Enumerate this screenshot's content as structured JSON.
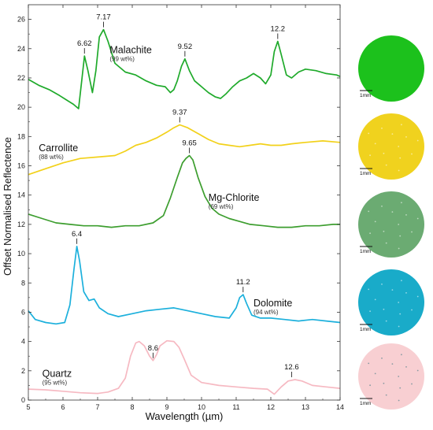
{
  "chart_data": {
    "type": "line",
    "xlabel": "Wavelength (µm)",
    "ylabel": "Offset Normalised Reflectence",
    "xlim": [
      5,
      14
    ],
    "ylim": [
      0,
      27
    ],
    "xticks": [
      "5",
      "6",
      "7",
      "8",
      "9",
      "10",
      "11",
      "12",
      "13",
      "14"
    ],
    "yticks": [
      "0",
      "2",
      "4",
      "6",
      "8",
      "10",
      "12",
      "14",
      "16",
      "18",
      "20",
      "22",
      "24",
      "26"
    ],
    "grid": false,
    "series": [
      {
        "name": "Malachite",
        "composition": "(99 wt%)",
        "color": "#1faa2b",
        "x": [
          5.0,
          5.3,
          5.6,
          5.9,
          6.1,
          6.3,
          6.45,
          6.55,
          6.62,
          6.72,
          6.85,
          6.95,
          7.05,
          7.17,
          7.3,
          7.5,
          7.8,
          8.1,
          8.4,
          8.7,
          8.95,
          9.1,
          9.2,
          9.3,
          9.42,
          9.52,
          9.65,
          9.8,
          10.0,
          10.2,
          10.4,
          10.55,
          10.7,
          10.9,
          11.1,
          11.3,
          11.5,
          11.7,
          11.85,
          12.0,
          12.1,
          12.2,
          12.3,
          12.45,
          12.6,
          12.8,
          13.0,
          13.3,
          13.6,
          13.9,
          14.0
        ],
        "y": [
          21.9,
          21.5,
          21.2,
          20.8,
          20.5,
          20.2,
          19.9,
          22.0,
          23.5,
          22.5,
          21.0,
          22.5,
          24.8,
          25.3,
          24.5,
          23.0,
          22.4,
          22.2,
          21.8,
          21.5,
          21.4,
          21.0,
          21.2,
          21.8,
          22.8,
          23.3,
          22.5,
          21.8,
          21.4,
          21.0,
          20.7,
          20.6,
          20.9,
          21.4,
          21.8,
          22.0,
          22.3,
          22.0,
          21.6,
          22.2,
          23.8,
          24.5,
          23.6,
          22.2,
          22.0,
          22.4,
          22.6,
          22.5,
          22.3,
          22.2,
          22.1
        ]
      },
      {
        "name": "Carrollite",
        "composition": "(88 wt%)",
        "color": "#f2d11a",
        "x": [
          5.0,
          5.5,
          6.0,
          6.5,
          7.0,
          7.5,
          7.8,
          8.1,
          8.4,
          8.7,
          9.0,
          9.2,
          9.37,
          9.6,
          9.9,
          10.2,
          10.5,
          10.8,
          11.1,
          11.4,
          11.7,
          12.0,
          12.3,
          12.6,
          13.0,
          13.5,
          14.0
        ],
        "y": [
          15.4,
          15.8,
          16.2,
          16.5,
          16.6,
          16.7,
          17.0,
          17.4,
          17.6,
          17.9,
          18.3,
          18.6,
          18.8,
          18.6,
          18.2,
          17.8,
          17.5,
          17.4,
          17.3,
          17.4,
          17.5,
          17.4,
          17.4,
          17.5,
          17.6,
          17.7,
          17.6
        ]
      },
      {
        "name": "Mg-Chlorite",
        "composition": "(69 wt%)",
        "color": "#3d9e2f",
        "x": [
          5.0,
          5.4,
          5.8,
          6.2,
          6.6,
          7.0,
          7.4,
          7.8,
          8.2,
          8.6,
          8.9,
          9.1,
          9.3,
          9.45,
          9.55,
          9.65,
          9.75,
          9.9,
          10.1,
          10.3,
          10.5,
          10.8,
          11.1,
          11.4,
          11.8,
          12.2,
          12.6,
          13.0,
          13.4,
          13.8,
          14.0
        ],
        "y": [
          12.7,
          12.4,
          12.1,
          12.0,
          11.9,
          11.9,
          11.8,
          11.9,
          11.9,
          12.1,
          12.6,
          13.8,
          15.2,
          16.2,
          16.5,
          16.7,
          16.4,
          15.2,
          13.9,
          13.1,
          12.7,
          12.4,
          12.2,
          12.0,
          11.9,
          11.8,
          11.8,
          11.9,
          11.9,
          12.0,
          12.0
        ]
      },
      {
        "name": "Dolomite",
        "composition": "(94 wt%)",
        "color": "#1cb0dc",
        "x": [
          5.0,
          5.2,
          5.5,
          5.8,
          6.05,
          6.2,
          6.32,
          6.4,
          6.48,
          6.6,
          6.75,
          6.9,
          7.05,
          7.3,
          7.6,
          8.0,
          8.4,
          8.8,
          9.2,
          9.6,
          10.0,
          10.4,
          10.8,
          11.0,
          11.1,
          11.2,
          11.3,
          11.45,
          11.7,
          12.0,
          12.4,
          12.8,
          13.2,
          13.6,
          14.0
        ],
        "y": [
          6.1,
          5.5,
          5.3,
          5.2,
          5.3,
          6.5,
          9.0,
          10.5,
          9.5,
          7.4,
          6.8,
          6.9,
          6.3,
          5.9,
          5.7,
          5.9,
          6.1,
          6.2,
          6.3,
          6.1,
          5.9,
          5.7,
          5.6,
          6.3,
          7.0,
          7.2,
          6.6,
          5.8,
          5.6,
          5.6,
          5.5,
          5.4,
          5.5,
          5.4,
          5.3
        ]
      },
      {
        "name": "Quartz",
        "composition": "(95 wt%)",
        "color": "#f6b9c2",
        "x": [
          5.0,
          5.5,
          6.0,
          6.5,
          7.0,
          7.3,
          7.6,
          7.8,
          7.95,
          8.1,
          8.2,
          8.35,
          8.5,
          8.6,
          8.7,
          8.8,
          9.0,
          9.2,
          9.35,
          9.5,
          9.7,
          10.0,
          10.5,
          11.0,
          11.5,
          11.9,
          12.1,
          12.3,
          12.5,
          12.7,
          12.9,
          13.2,
          13.6,
          14.0
        ],
        "y": [
          0.75,
          0.7,
          0.6,
          0.5,
          0.45,
          0.55,
          0.8,
          1.5,
          3.0,
          3.9,
          4.0,
          3.7,
          3.0,
          2.7,
          3.1,
          3.7,
          4.05,
          4.0,
          3.6,
          2.8,
          1.7,
          1.2,
          1.0,
          0.9,
          0.8,
          0.75,
          0.4,
          0.9,
          1.3,
          1.4,
          1.3,
          1.0,
          0.9,
          0.8
        ]
      }
    ],
    "peak_labels": [
      {
        "text": "6.62",
        "x": 6.62,
        "y": 23.5
      },
      {
        "text": "7.17",
        "x": 7.17,
        "y": 25.3
      },
      {
        "text": "9.52",
        "x": 9.52,
        "y": 23.3
      },
      {
        "text": "12.2",
        "x": 12.2,
        "y": 24.5
      },
      {
        "text": "9.37",
        "x": 9.37,
        "y": 18.8
      },
      {
        "text": "9.65",
        "x": 9.65,
        "y": 16.7
      },
      {
        "text": "6.4",
        "x": 6.4,
        "y": 10.5
      },
      {
        "text": "11.2",
        "x": 11.2,
        "y": 7.2
      },
      {
        "text": "8.6",
        "x": 8.6,
        "y": 2.7
      },
      {
        "text": "12.6",
        "x": 12.6,
        "y": 1.4
      }
    ],
    "series_labels": [
      {
        "series": 0,
        "x": 7.35,
        "y": 23.7
      },
      {
        "series": 1,
        "x": 5.3,
        "y": 17.0
      },
      {
        "series": 2,
        "x": 10.2,
        "y": 13.6
      },
      {
        "series": 3,
        "x": 11.5,
        "y": 6.4
      },
      {
        "series": 4,
        "x": 5.4,
        "y": 1.6
      }
    ]
  },
  "thumbnails": [
    {
      "color": "#1cc11c",
      "scale": "1mm"
    },
    {
      "color": "#f0d21e",
      "scale": "1mm"
    },
    {
      "color": "#6bab72",
      "scale": "1mm"
    },
    {
      "color": "#19abc9",
      "scale": "1mm"
    },
    {
      "color": "#f8cfd2",
      "scale": "1mm"
    }
  ]
}
